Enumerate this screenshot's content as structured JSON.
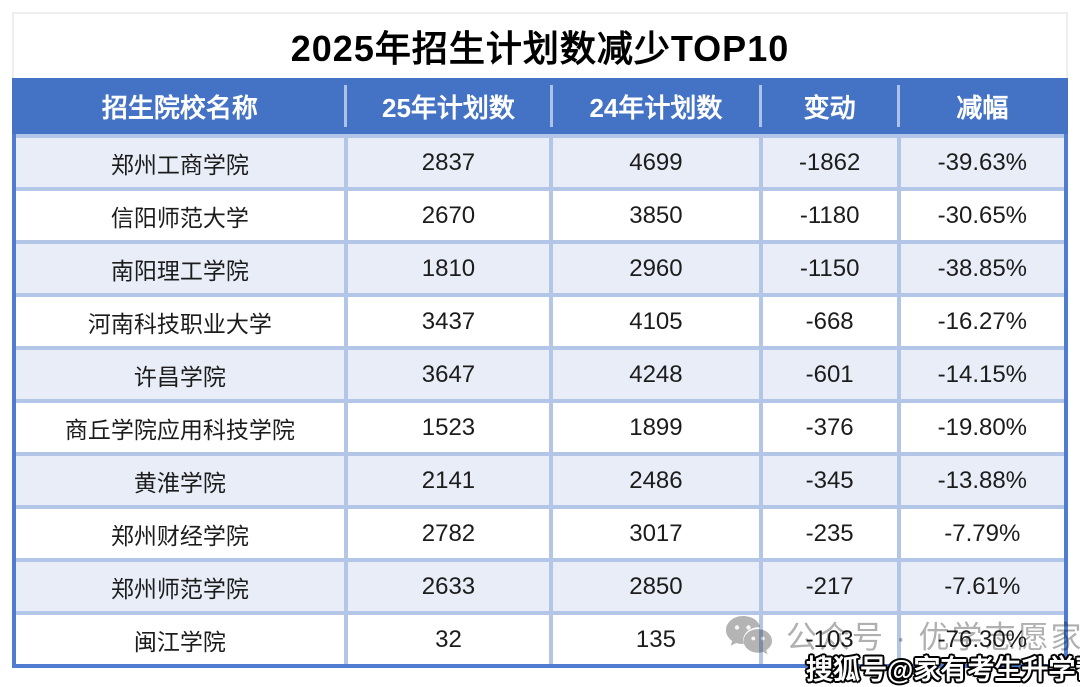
{
  "title": "2025年招生计划数减少TOP10",
  "colors": {
    "header_bg": "#4472c4",
    "row_alt_bg": "#e9edf7",
    "grid_line": "#b4c6e7",
    "outer_border": "#4f7cd0",
    "watermark_gray": "#b0b0b0"
  },
  "watermarks": {
    "wechat_icon": "wechat-icon",
    "wechat_text": "公众号 · 优学志愿家",
    "sohu_text": "搜狐号@家有考生升学帮"
  },
  "chart_data": {
    "type": "table",
    "title": "2025年招生计划数减少TOP10",
    "columns": [
      "招生院校名称",
      "25年计划数",
      "24年计划数",
      "变动",
      "减幅"
    ],
    "rows": [
      [
        "郑州工商学院",
        "2837",
        "4699",
        "-1862",
        "-39.63%"
      ],
      [
        "信阳师范大学",
        "2670",
        "3850",
        "-1180",
        "-30.65%"
      ],
      [
        "南阳理工学院",
        "1810",
        "2960",
        "-1150",
        "-38.85%"
      ],
      [
        "河南科技职业大学",
        "3437",
        "4105",
        "-668",
        "-16.27%"
      ],
      [
        "许昌学院",
        "3647",
        "4248",
        "-601",
        "-14.15%"
      ],
      [
        "商丘学院应用科技学院",
        "1523",
        "1899",
        "-376",
        "-19.80%"
      ],
      [
        "黄淮学院",
        "2141",
        "2486",
        "-345",
        "-13.88%"
      ],
      [
        "郑州财经学院",
        "2782",
        "3017",
        "-235",
        "-7.79%"
      ],
      [
        "郑州师范学院",
        "2633",
        "2850",
        "-217",
        "-7.61%"
      ],
      [
        "闽江学院",
        "32",
        "135",
        "-103",
        "-76.30%"
      ]
    ],
    "layout": {
      "striped": true,
      "stripe_start": "odd",
      "header_text_color": "#ffffff"
    }
  }
}
